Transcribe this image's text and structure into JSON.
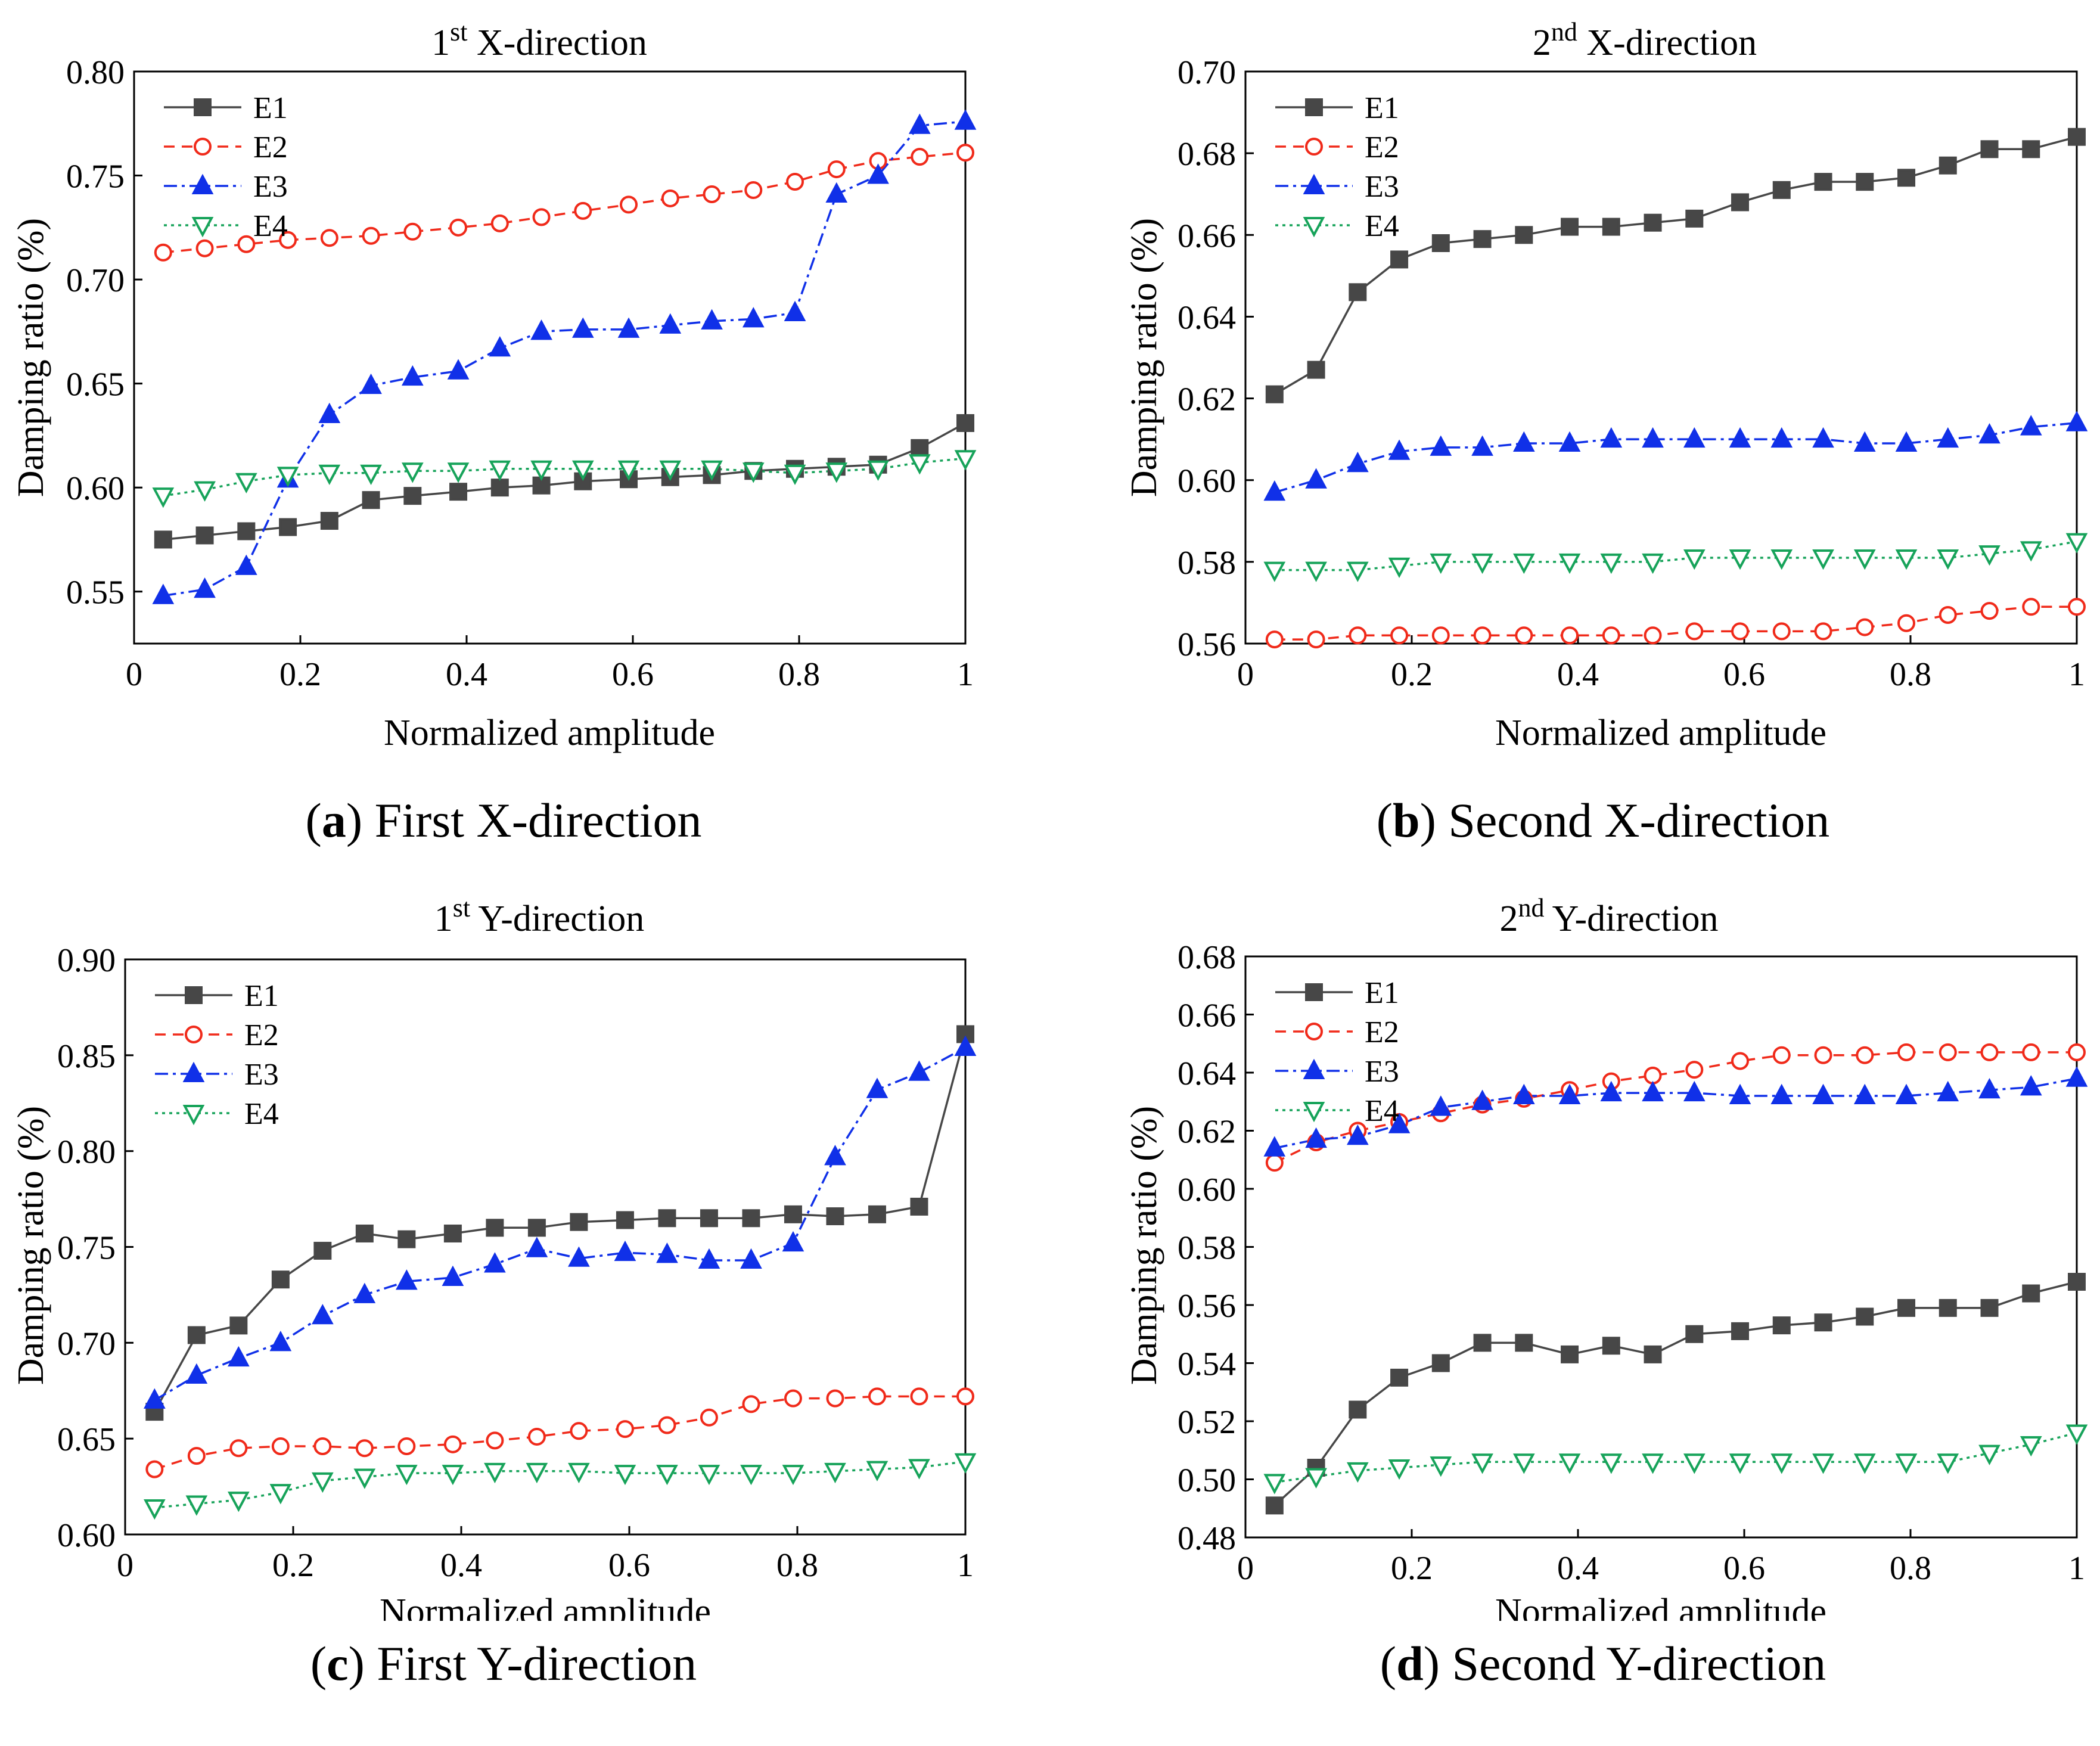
{
  "colors": {
    "E1": "#474747",
    "E2": "#f02a1a",
    "E3": "#1030e8",
    "E4": "#17a35a",
    "axis": "#000000"
  },
  "chart_data": [
    {
      "type": "line",
      "panel": "a",
      "title_main": "1",
      "title_sup": "st",
      "title_rest": " X-direction",
      "caption_letter": "a",
      "caption_text": "First X-direction",
      "xlabel": "Normalized amplitude",
      "ylabel": "Damping ratio (%)",
      "xlim": [
        0,
        1
      ],
      "ylim": [
        0.525,
        0.8
      ],
      "xticks": [
        "0",
        "0.2",
        "0.4",
        "0.6",
        "0.8",
        "1"
      ],
      "yticks": [
        "0.55",
        "0.60",
        "0.65",
        "0.70",
        "0.75",
        "0.80"
      ],
      "x": [
        0.035,
        0.085,
        0.135,
        0.185,
        0.235,
        0.285,
        0.335,
        0.39,
        0.44,
        0.49,
        0.54,
        0.595,
        0.645,
        0.695,
        0.745,
        0.795,
        0.845,
        0.895,
        0.945,
        1.0
      ],
      "series": [
        {
          "name": "E1",
          "values": [
            0.575,
            0.577,
            0.579,
            0.581,
            0.584,
            0.594,
            0.596,
            0.598,
            0.6,
            0.601,
            0.603,
            0.604,
            0.605,
            0.606,
            0.608,
            0.609,
            0.61,
            0.611,
            0.619,
            0.631
          ]
        },
        {
          "name": "E2",
          "values": [
            0.713,
            0.715,
            0.717,
            0.719,
            0.72,
            0.721,
            0.723,
            0.725,
            0.727,
            0.73,
            0.733,
            0.736,
            0.739,
            0.741,
            0.743,
            0.747,
            0.753,
            0.757,
            0.759,
            0.761
          ]
        },
        {
          "name": "E3",
          "values": [
            0.548,
            0.551,
            0.562,
            0.604,
            0.635,
            0.649,
            0.653,
            0.656,
            0.667,
            0.675,
            0.676,
            0.676,
            0.678,
            0.68,
            0.681,
            0.684,
            0.741,
            0.75,
            0.774,
            0.776
          ]
        },
        {
          "name": "E4",
          "values": [
            0.596,
            0.599,
            0.603,
            0.606,
            0.607,
            0.607,
            0.608,
            0.608,
            0.609,
            0.609,
            0.609,
            0.609,
            0.609,
            0.609,
            0.608,
            0.607,
            0.608,
            0.609,
            0.612,
            0.614
          ]
        }
      ]
    },
    {
      "type": "line",
      "panel": "b",
      "title_main": "2",
      "title_sup": "nd",
      "title_rest": " X-direction",
      "caption_letter": "b",
      "caption_text": "Second X-direction",
      "xlabel": "Normalized amplitude",
      "ylabel": "Damping ratio (%)",
      "xlim": [
        0,
        1
      ],
      "ylim": [
        0.56,
        0.7
      ],
      "xticks": [
        "0",
        "0.2",
        "0.4",
        "0.6",
        "0.8",
        "1"
      ],
      "yticks": [
        "0.56",
        "0.58",
        "0.60",
        "0.62",
        "0.64",
        "0.66",
        "0.68",
        "0.70"
      ],
      "x": [
        0.035,
        0.085,
        0.135,
        0.185,
        0.235,
        0.285,
        0.335,
        0.39,
        0.44,
        0.49,
        0.54,
        0.595,
        0.645,
        0.695,
        0.745,
        0.795,
        0.845,
        0.895,
        0.945,
        1.0
      ],
      "series": [
        {
          "name": "E1",
          "values": [
            0.621,
            0.627,
            0.646,
            0.654,
            0.658,
            0.659,
            0.66,
            0.662,
            0.662,
            0.663,
            0.664,
            0.668,
            0.671,
            0.673,
            0.673,
            0.674,
            0.677,
            0.681,
            0.681,
            0.684
          ]
        },
        {
          "name": "E2",
          "values": [
            0.561,
            0.561,
            0.562,
            0.562,
            0.562,
            0.562,
            0.562,
            0.562,
            0.562,
            0.562,
            0.563,
            0.563,
            0.563,
            0.563,
            0.564,
            0.565,
            0.567,
            0.568,
            0.569,
            0.569
          ]
        },
        {
          "name": "E3",
          "values": [
            0.597,
            0.6,
            0.604,
            0.607,
            0.608,
            0.608,
            0.609,
            0.609,
            0.61,
            0.61,
            0.61,
            0.61,
            0.61,
            0.61,
            0.609,
            0.609,
            0.61,
            0.611,
            0.613,
            0.614
          ]
        },
        {
          "name": "E4",
          "values": [
            0.578,
            0.578,
            0.578,
            0.579,
            0.58,
            0.58,
            0.58,
            0.58,
            0.58,
            0.58,
            0.581,
            0.581,
            0.581,
            0.581,
            0.581,
            0.581,
            0.581,
            0.582,
            0.583,
            0.585
          ]
        }
      ]
    },
    {
      "type": "line",
      "panel": "c",
      "title_main": "1",
      "title_sup": "st",
      "title_rest": " Y-direction",
      "caption_letter": "c",
      "caption_text": "First Y-direction",
      "xlabel": "Normalized amplitude",
      "ylabel": "Damping ratio (%)",
      "xlim": [
        0,
        1
      ],
      "ylim": [
        0.6,
        0.9
      ],
      "xticks": [
        "0",
        "0.2",
        "0.4",
        "0.6",
        "0.8",
        "1"
      ],
      "yticks": [
        "0.60",
        "0.65",
        "0.70",
        "0.75",
        "0.80",
        "0.85",
        "0.90"
      ],
      "x": [
        0.035,
        0.085,
        0.135,
        0.185,
        0.235,
        0.285,
        0.335,
        0.39,
        0.44,
        0.49,
        0.54,
        0.595,
        0.645,
        0.695,
        0.745,
        0.795,
        0.845,
        0.895,
        0.945,
        1.0
      ],
      "series": [
        {
          "name": "E1",
          "values": [
            0.664,
            0.704,
            0.709,
            0.733,
            0.748,
            0.757,
            0.754,
            0.757,
            0.76,
            0.76,
            0.763,
            0.764,
            0.765,
            0.765,
            0.765,
            0.767,
            0.766,
            0.767,
            0.771,
            0.861
          ]
        },
        {
          "name": "E2",
          "values": [
            0.634,
            0.641,
            0.645,
            0.646,
            0.646,
            0.645,
            0.646,
            0.647,
            0.649,
            0.651,
            0.654,
            0.655,
            0.657,
            0.661,
            0.668,
            0.671,
            0.671,
            0.672,
            0.672,
            0.672
          ]
        },
        {
          "name": "E3",
          "values": [
            0.67,
            0.683,
            0.692,
            0.7,
            0.714,
            0.725,
            0.732,
            0.734,
            0.741,
            0.749,
            0.744,
            0.747,
            0.746,
            0.743,
            0.743,
            0.752,
            0.797,
            0.832,
            0.841,
            0.854
          ]
        },
        {
          "name": "E4",
          "values": [
            0.614,
            0.616,
            0.618,
            0.622,
            0.628,
            0.63,
            0.632,
            0.632,
            0.633,
            0.633,
            0.633,
            0.632,
            0.632,
            0.632,
            0.632,
            0.632,
            0.633,
            0.634,
            0.635,
            0.638
          ]
        }
      ]
    },
    {
      "type": "line",
      "panel": "d",
      "title_main": "2",
      "title_sup": "nd",
      "title_rest": " Y-direction",
      "caption_letter": "d",
      "caption_text": "Second Y-direction",
      "xlabel": "Normalized amplitude",
      "ylabel": "Damping ratio (%)",
      "xlim": [
        0,
        1
      ],
      "ylim": [
        0.48,
        0.68
      ],
      "xticks": [
        "0",
        "0.2",
        "0.4",
        "0.6",
        "0.8",
        "1"
      ],
      "yticks": [
        "0.48",
        "0.50",
        "0.52",
        "0.54",
        "0.56",
        "0.58",
        "0.60",
        "0.62",
        "0.64",
        "0.66",
        "0.68"
      ],
      "x": [
        0.035,
        0.085,
        0.135,
        0.185,
        0.235,
        0.285,
        0.335,
        0.39,
        0.44,
        0.49,
        0.54,
        0.595,
        0.645,
        0.695,
        0.745,
        0.795,
        0.845,
        0.895,
        0.945,
        1.0
      ],
      "series": [
        {
          "name": "E1",
          "values": [
            0.491,
            0.504,
            0.524,
            0.535,
            0.54,
            0.547,
            0.547,
            0.543,
            0.546,
            0.543,
            0.55,
            0.551,
            0.553,
            0.554,
            0.556,
            0.559,
            0.559,
            0.559,
            0.564,
            0.568
          ]
        },
        {
          "name": "E2",
          "values": [
            0.609,
            0.616,
            0.62,
            0.623,
            0.626,
            0.629,
            0.631,
            0.634,
            0.637,
            0.639,
            0.641,
            0.644,
            0.646,
            0.646,
            0.646,
            0.647,
            0.647,
            0.647,
            0.647,
            0.647
          ]
        },
        {
          "name": "E3",
          "values": [
            0.614,
            0.617,
            0.618,
            0.622,
            0.628,
            0.63,
            0.632,
            0.632,
            0.633,
            0.633,
            0.633,
            0.632,
            0.632,
            0.632,
            0.632,
            0.632,
            0.633,
            0.634,
            0.635,
            0.638
          ]
        },
        {
          "name": "E4",
          "values": [
            0.499,
            0.501,
            0.503,
            0.504,
            0.505,
            0.506,
            0.506,
            0.506,
            0.506,
            0.506,
            0.506,
            0.506,
            0.506,
            0.506,
            0.506,
            0.506,
            0.506,
            0.509,
            0.512,
            0.516
          ]
        }
      ]
    }
  ]
}
